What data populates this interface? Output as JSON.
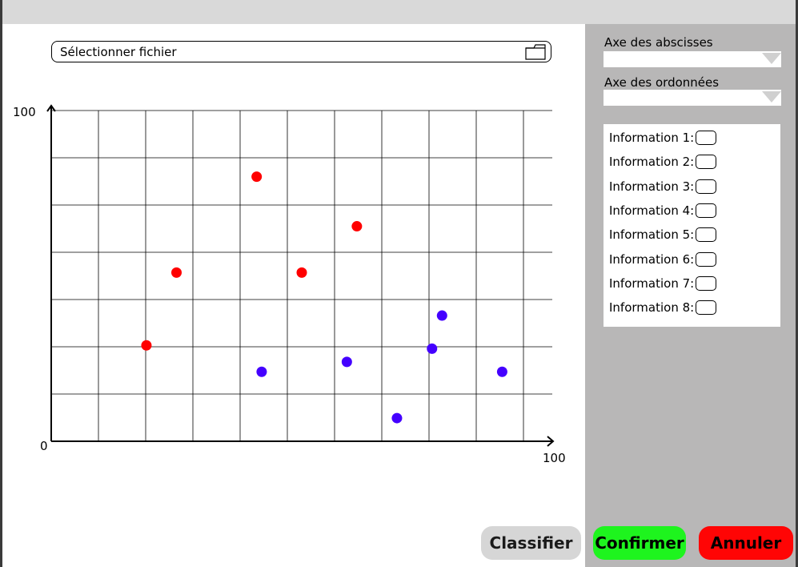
{
  "file_picker": {
    "label": "Sélectionner fichier",
    "icon": "folder-icon"
  },
  "right_panel": {
    "x_axis_label": "Axe des abscisses",
    "x_axis_value": "",
    "y_axis_label": "Axe des ordonnées",
    "y_axis_value": "",
    "info_items": [
      "Information 1:",
      "Information 2:",
      "Information 3:",
      "Information 4:",
      "Information 5:",
      "Information 6:",
      "Information 7:",
      "Information 8:"
    ]
  },
  "buttons": {
    "classify": "Classifier",
    "confirm": "Confirmer",
    "cancel": "Annuler"
  },
  "colors": {
    "class_a": "#ff0000",
    "class_b": "#4400ff",
    "confirm": "#1ef41e",
    "cancel": "#ff0505",
    "panel": "#b8b7b7"
  },
  "chart_data": {
    "type": "scatter",
    "title": "",
    "xlabel": "",
    "ylabel": "",
    "xlim": [
      0,
      100
    ],
    "ylim": [
      0,
      100
    ],
    "x_tick_labels": [
      "100"
    ],
    "y_tick_labels": [
      "0",
      "100"
    ],
    "grid": true,
    "series": [
      {
        "color": "#ff0000",
        "points": [
          [
            19,
            29
          ],
          [
            25,
            51
          ],
          [
            41,
            80
          ],
          [
            50,
            51
          ],
          [
            61,
            65
          ]
        ]
      },
      {
        "color": "#4400ff",
        "points": [
          [
            42,
            21
          ],
          [
            59,
            24
          ],
          [
            69,
            7
          ],
          [
            76,
            28
          ],
          [
            78,
            38
          ],
          [
            90,
            21
          ]
        ]
      }
    ]
  }
}
